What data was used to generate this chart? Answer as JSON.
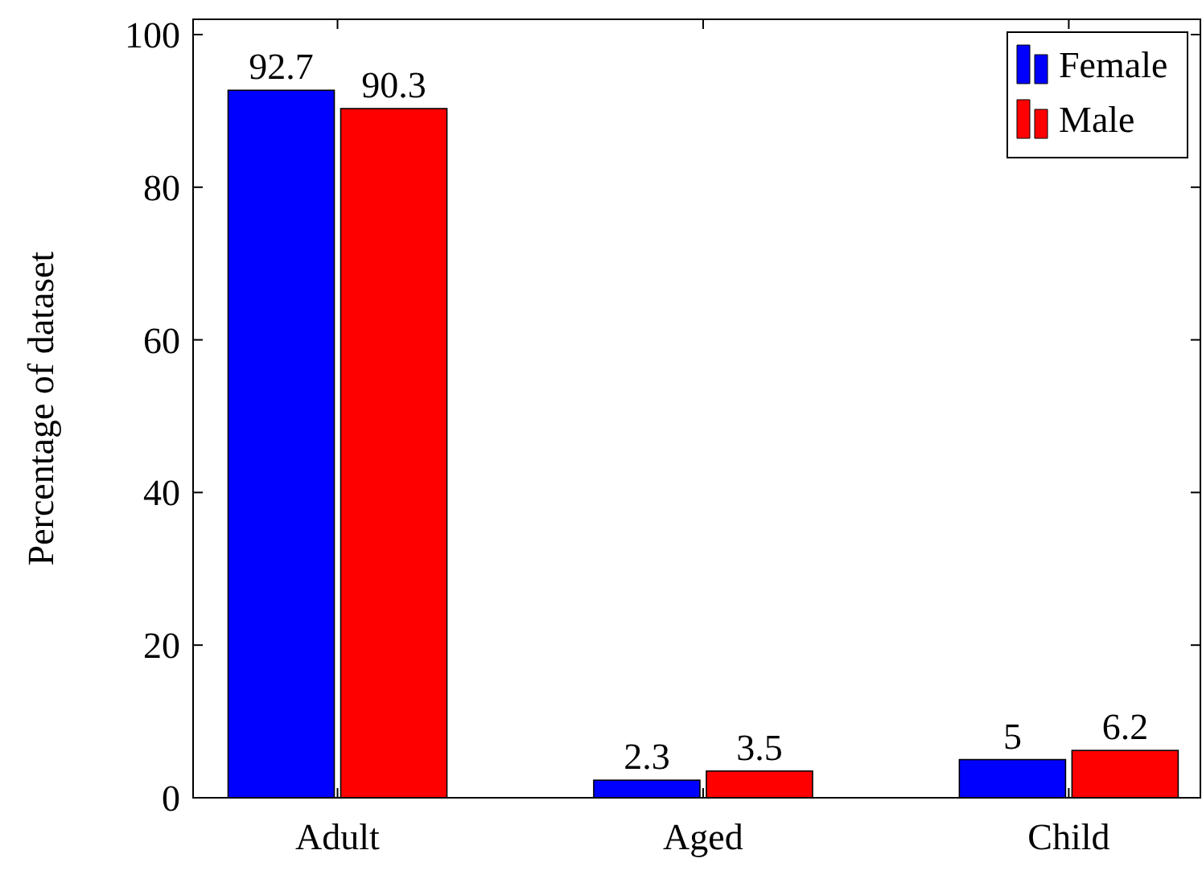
{
  "chart_data": {
    "type": "bar",
    "ylabel": "Percentage of dataset",
    "categories": [
      "Adult",
      "Aged",
      "Child"
    ],
    "series": [
      {
        "name": "Female",
        "color": "#0000ff",
        "values": [
          92.7,
          2.3,
          5
        ]
      },
      {
        "name": "Male",
        "color": "#ff0000",
        "values": [
          90.3,
          3.5,
          6.2
        ]
      }
    ],
    "ylim": [
      0,
      102
    ],
    "yticks": [
      0,
      20,
      40,
      60,
      80,
      100
    ],
    "data_labels": true,
    "legend": "top right",
    "grid": false
  }
}
